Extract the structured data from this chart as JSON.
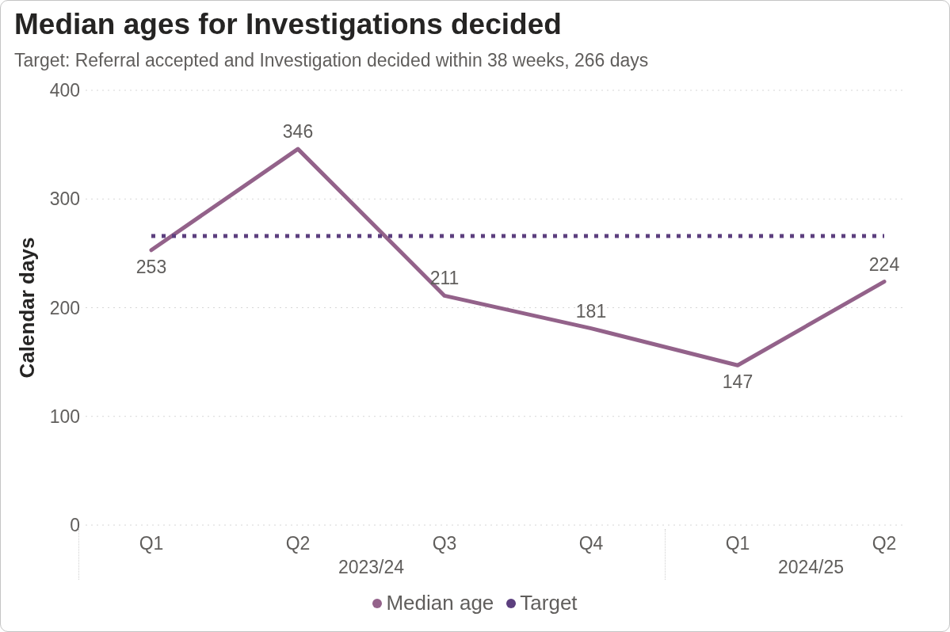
{
  "chart_data": {
    "type": "line",
    "title": "Median ages for Investigations decided",
    "subtitle": "Target: Referral accepted and Investigation decided within 38 weeks, 266 days",
    "ylabel": "Calendar days",
    "categories": [
      "Q1",
      "Q2",
      "Q3",
      "Q4",
      "Q1",
      "Q2"
    ],
    "annotations": [
      "2023/24",
      "2024/25"
    ],
    "series": [
      {
        "name": "Median age",
        "color": "#93628a",
        "values": [
          253,
          346,
          211,
          181,
          147,
          224
        ],
        "value_labels": [
          "253",
          "346",
          "211",
          "181",
          "147",
          "224"
        ]
      },
      {
        "name": "Target",
        "color": "#5c3f7e",
        "values": [
          266,
          266,
          266,
          266,
          266,
          266
        ],
        "line_style": "dotted"
      }
    ],
    "ylim": [
      0,
      400
    ],
    "yticks": [
      0,
      100,
      200,
      300,
      400
    ],
    "grid": "y",
    "legend": "bottom",
    "marker": "none",
    "line_style": "solid"
  }
}
